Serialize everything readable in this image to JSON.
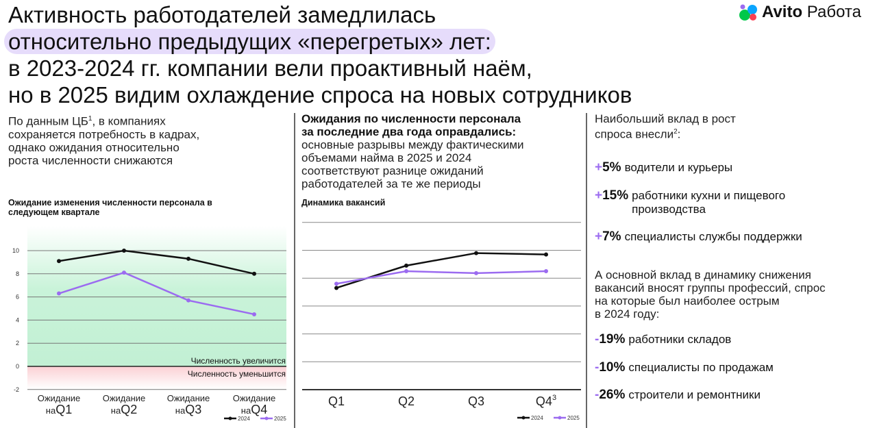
{
  "header": {
    "title_lines": [
      "Активность работодателей замедлилась",
      "относительно предыдущих «перегретых» лет:",
      "в 2023-2024 гг. компании вели проактивный наём,",
      "но в 2025 видим охлаждение спроса на новых сотрудников"
    ],
    "logo_brand": "Avito",
    "logo_product": "Работа"
  },
  "left_text": {
    "l1": "По данным ЦБ",
    "sup": "1",
    "l1b": ", в компаниях",
    "l2": "сохраняется потребность в кадрах,",
    "l3": "однако ожидания относительно",
    "l4": "роста численности снижаются"
  },
  "mid_text": {
    "b1": "Ожидания по численности персонала",
    "b2": "за последние два года оправдались:",
    "l1": "основные разрывы между фактическими",
    "l2": "объемами найма в 2025 и 2024",
    "l3": "соответствуют разнице ожиданий",
    "l4": "работодателей за те же периоды"
  },
  "right_text": {
    "h1": "Наибольший вклад в рост",
    "h2": "спроса внесли",
    "h2sup": "2",
    "h2end": ":",
    "growth": [
      {
        "sign": "+",
        "value": "5%",
        "label": "водители и курьеры"
      },
      {
        "sign": "+",
        "value": "15%",
        "label": "работники кухни и пищевого производства"
      },
      {
        "sign": "+",
        "value": "7%",
        "label": "специалисты службы поддержки"
      }
    ],
    "d1": "А основной вклад в динамику снижения",
    "d2": "вакансий вносят группы профессий, спрос",
    "d3": "на которые был наиболее острым",
    "d4": "в 2024 году:",
    "decline": [
      {
        "sign": "-",
        "value": "19%",
        "label": "работники складов"
      },
      {
        "sign": "-",
        "value": "10%",
        "label": "специалисты по продажам"
      },
      {
        "sign": "-",
        "value": "26%",
        "label": "строители и ремонтники"
      }
    ]
  },
  "colors": {
    "s2024": "#111111",
    "s2025": "#9b6bf0",
    "accent": "#9b6bf0",
    "green": "#c9f3d9",
    "red": "#fbd3d6"
  },
  "chart_data": [
    {
      "type": "line",
      "title": "Ожидание изменения численности персонала в следующем квартале",
      "categories": [
        "Ожидание на Q1",
        "Ожидание на Q2",
        "Ожидание на Q3",
        "Ожидание на Q4"
      ],
      "cat_prefix": "Ожидание",
      "cat_prefix2": "на",
      "cat_q": [
        "Q1",
        "Q2",
        "Q3",
        "Q4"
      ],
      "series": [
        {
          "name": "2024",
          "values": [
            9.1,
            10.0,
            9.3,
            8.0
          ]
        },
        {
          "name": "2025",
          "values": [
            6.3,
            8.1,
            5.7,
            4.5
          ]
        }
      ],
      "ylim": [
        -2,
        10
      ],
      "yticks": [
        "-2",
        "0",
        "2",
        "4",
        "6",
        "8",
        "10"
      ],
      "annotations": [
        "Численность увеличится",
        "Численность уменьшится"
      ],
      "legend": "bottom-right",
      "grid": true
    },
    {
      "type": "line",
      "title": "Динамика вакансий",
      "categories": [
        "Q1",
        "Q2",
        "Q3",
        "Q4"
      ],
      "q4sup": "3",
      "series": [
        {
          "name": "2024",
          "values": [
            3.65,
            4.45,
            4.9,
            4.85
          ]
        },
        {
          "name": "2025",
          "values": [
            3.8,
            4.25,
            4.18,
            4.25
          ]
        }
      ],
      "ylim": [
        0,
        6
      ],
      "legend": "bottom-right",
      "grid": true
    }
  ]
}
